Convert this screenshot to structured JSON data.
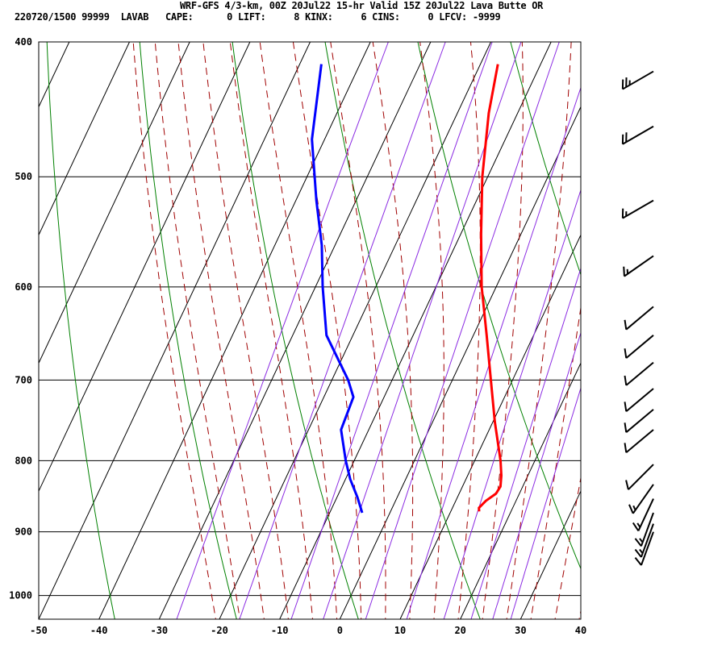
{
  "header": {
    "line1": "WRF-GFS 4/3-km, 00Z 20Jul22 15-hr Valid 15Z 20Jul22 Lava Butte OR",
    "line2": "220720/1500 99999  LAVAB   CAPE:      0 LIFT:     8 KINX:     6 CINS:     0 LFCV: -9999"
  },
  "chart_data": {
    "type": "line",
    "title": "WRF-GFS 4/3-km, 00Z 20Jul22 15-hr Valid 15Z 20Jul22 Lava Butte OR",
    "subtitle": "220720/1500 99999  LAVAB   CAPE:      0 LIFT:     8 KINX:     6 CINS:     0 LFCV: -9999",
    "xlabel": "",
    "ylabel": "",
    "xlim": [
      -50,
      40
    ],
    "ylim": [
      1040,
      400
    ],
    "y_scale": "log-pressure (inverted)",
    "x_ticks": [
      "-50",
      "-40",
      "-30",
      "-20",
      "-10",
      "0",
      "10",
      "20",
      "30",
      "40"
    ],
    "y_ticks": [
      "400",
      "500",
      "600",
      "700",
      "800",
      "900",
      "1000"
    ],
    "grid": true,
    "skew_note": "isotherms skewed",
    "series": [
      {
        "color": "#ff0000",
        "points": [
          {
            "p": 415,
            "t": -17.1
          },
          {
            "p": 450,
            "t": -14.8
          },
          {
            "p": 500,
            "t": -10.9
          },
          {
            "p": 550,
            "t": -6.6
          },
          {
            "p": 600,
            "t": -2.4
          },
          {
            "p": 650,
            "t": 2.2
          },
          {
            "p": 700,
            "t": 6.4
          },
          {
            "p": 750,
            "t": 10.3
          },
          {
            "p": 800,
            "t": 14.3
          },
          {
            "p": 820,
            "t": 15.6
          },
          {
            "p": 835,
            "t": 16.3
          },
          {
            "p": 845,
            "t": 16.1
          },
          {
            "p": 855,
            "t": 15.0
          },
          {
            "p": 865,
            "t": 14.4
          },
          {
            "p": 870,
            "t": 14.7
          }
        ]
      },
      {
        "color": "#0000ff",
        "points": [
          {
            "p": 415,
            "t": -46.4
          },
          {
            "p": 470,
            "t": -42.1
          },
          {
            "p": 520,
            "t": -36.6
          },
          {
            "p": 560,
            "t": -32.2
          },
          {
            "p": 600,
            "t": -28.8
          },
          {
            "p": 650,
            "t": -24.4
          },
          {
            "p": 700,
            "t": -17.3
          },
          {
            "p": 720,
            "t": -15.1
          },
          {
            "p": 760,
            "t": -14.6
          },
          {
            "p": 800,
            "t": -11.4
          },
          {
            "p": 825,
            "t": -9.2
          },
          {
            "p": 850,
            "t": -6.6
          },
          {
            "p": 872,
            "t": -4.6
          }
        ]
      }
    ],
    "wind_barbs": [
      {
        "p": 420,
        "speed_kt": 25,
        "dir_deg": 240
      },
      {
        "p": 460,
        "speed_kt": 20,
        "dir_deg": 240
      },
      {
        "p": 520,
        "speed_kt": 15,
        "dir_deg": 240
      },
      {
        "p": 570,
        "speed_kt": 15,
        "dir_deg": 235
      },
      {
        "p": 620,
        "speed_kt": 10,
        "dir_deg": 230
      },
      {
        "p": 650,
        "speed_kt": 10,
        "dir_deg": 230
      },
      {
        "p": 680,
        "speed_kt": 10,
        "dir_deg": 230
      },
      {
        "p": 710,
        "speed_kt": 10,
        "dir_deg": 230
      },
      {
        "p": 735,
        "speed_kt": 10,
        "dir_deg": 230
      },
      {
        "p": 760,
        "speed_kt": 10,
        "dir_deg": 230
      },
      {
        "p": 805,
        "speed_kt": 10,
        "dir_deg": 225
      },
      {
        "p": 832,
        "speed_kt": 15,
        "dir_deg": 215
      },
      {
        "p": 852,
        "speed_kt": 15,
        "dir_deg": 205
      },
      {
        "p": 872,
        "speed_kt": 15,
        "dir_deg": 200
      },
      {
        "p": 888,
        "speed_kt": 15,
        "dir_deg": 200
      },
      {
        "p": 900,
        "speed_kt": 10,
        "dir_deg": 200
      }
    ],
    "line_colors": {
      "isotherm": "#000000",
      "dry_adiabat": "#008000",
      "moist_adiabat": "#a00000",
      "mixing_ratio": "#8b2be2"
    }
  }
}
